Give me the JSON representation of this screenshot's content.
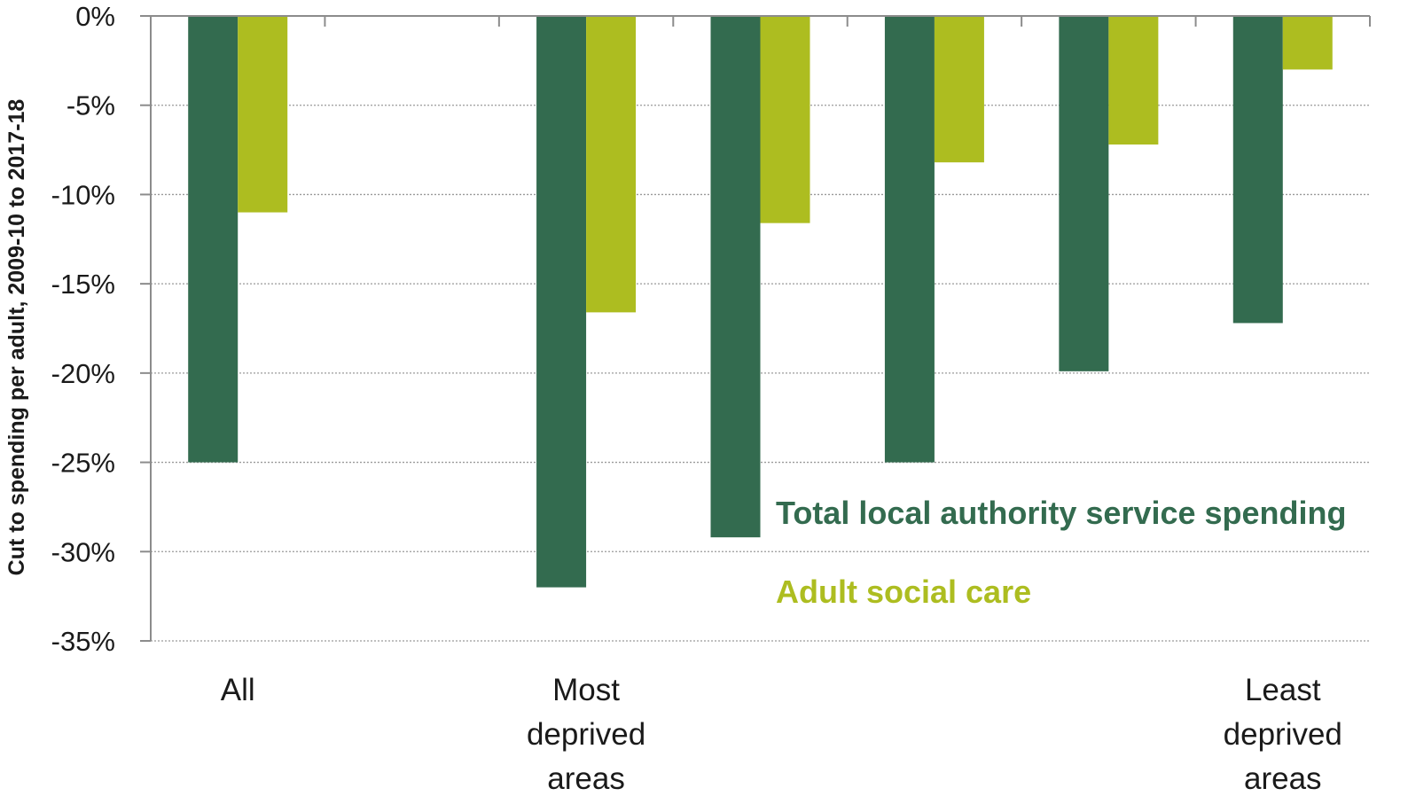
{
  "chart_data": {
    "type": "bar",
    "title": "",
    "xlabel": "",
    "ylabel": "Cut to spending per adult, 2009-10 to 2017-18",
    "ylim": [
      -35,
      0
    ],
    "yticks": [
      0,
      -5,
      -10,
      -15,
      -20,
      -25,
      -30,
      -35
    ],
    "ytick_labels": [
      "0%",
      "-5%",
      "-10%",
      "-15%",
      "-20%",
      "-25%",
      "-30%",
      "-35%"
    ],
    "grid": "horizontal dotted",
    "categories": [
      [
        "All"
      ],
      [],
      [
        "Most",
        "deprived",
        "areas"
      ],
      [],
      [],
      [],
      [
        "Least",
        "deprived",
        "areas"
      ]
    ],
    "series": [
      {
        "name": "Total local authority service spending",
        "color": "#336b4f",
        "values": [
          -25.0,
          null,
          -32.0,
          -29.2,
          -25.0,
          -19.9,
          -17.2
        ]
      },
      {
        "name": "Adult social care",
        "color": "#adbd20",
        "values": [
          -11.0,
          null,
          -16.6,
          -11.6,
          -8.2,
          -7.2,
          -3.0
        ]
      }
    ],
    "legend_placement": "inline, lower-right of plot area"
  }
}
